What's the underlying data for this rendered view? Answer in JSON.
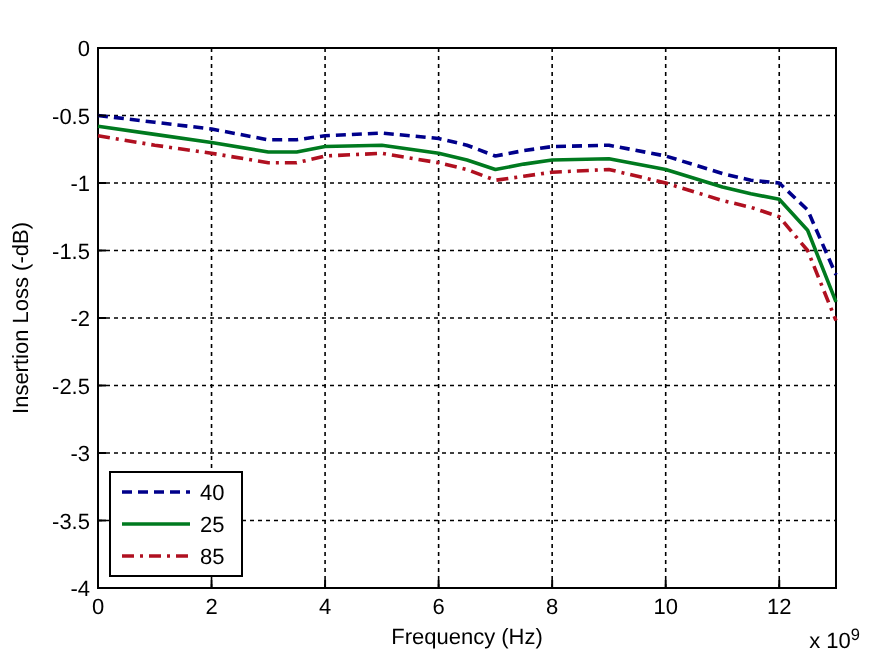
{
  "chart_data": {
    "type": "line",
    "xlabel": "Frequency (Hz)",
    "ylabel": "Insertion Loss (-dB)",
    "annotations": [
      "x 10$^{9}$"
    ],
    "x": [
      0,
      1,
      2,
      3,
      3.5,
      4,
      5,
      6,
      6.5,
      7,
      7.5,
      8,
      9,
      10,
      11,
      11.5,
      12,
      12.5,
      13
    ],
    "series": [
      {
        "name": "40",
        "color": "#00008b",
        "line_style": "dashed",
        "values": [
          -0.5,
          -0.55,
          -0.6,
          -0.68,
          -0.68,
          -0.65,
          -0.63,
          -0.67,
          -0.72,
          -0.8,
          -0.76,
          -0.73,
          -0.72,
          -0.8,
          -0.93,
          -0.98,
          -1.0,
          -1.2,
          -1.68
        ]
      },
      {
        "name": "25",
        "color": "#007a1f",
        "line_style": "solid",
        "values": [
          -0.58,
          -0.64,
          -0.7,
          -0.77,
          -0.77,
          -0.73,
          -0.72,
          -0.78,
          -0.83,
          -0.9,
          -0.86,
          -0.83,
          -0.82,
          -0.9,
          -1.03,
          -1.08,
          -1.12,
          -1.35,
          -1.88
        ]
      },
      {
        "name": "85",
        "color": "#b01020",
        "line_style": "dashdot",
        "values": [
          -0.65,
          -0.72,
          -0.78,
          -0.85,
          -0.85,
          -0.8,
          -0.78,
          -0.85,
          -0.9,
          -0.98,
          -0.95,
          -0.92,
          -0.9,
          -1.0,
          -1.13,
          -1.18,
          -1.25,
          -1.5,
          -2.02
        ]
      }
    ],
    "xlim": [
      0,
      13
    ],
    "xticks": [
      0,
      2,
      4,
      6,
      8,
      10,
      12
    ],
    "ylim": [
      -4,
      0
    ],
    "yticks": [
      -4,
      -3.5,
      -3,
      -2.5,
      -2,
      -1.5,
      -1,
      -0.5,
      0
    ],
    "grid": true,
    "legend": "bottom left"
  }
}
